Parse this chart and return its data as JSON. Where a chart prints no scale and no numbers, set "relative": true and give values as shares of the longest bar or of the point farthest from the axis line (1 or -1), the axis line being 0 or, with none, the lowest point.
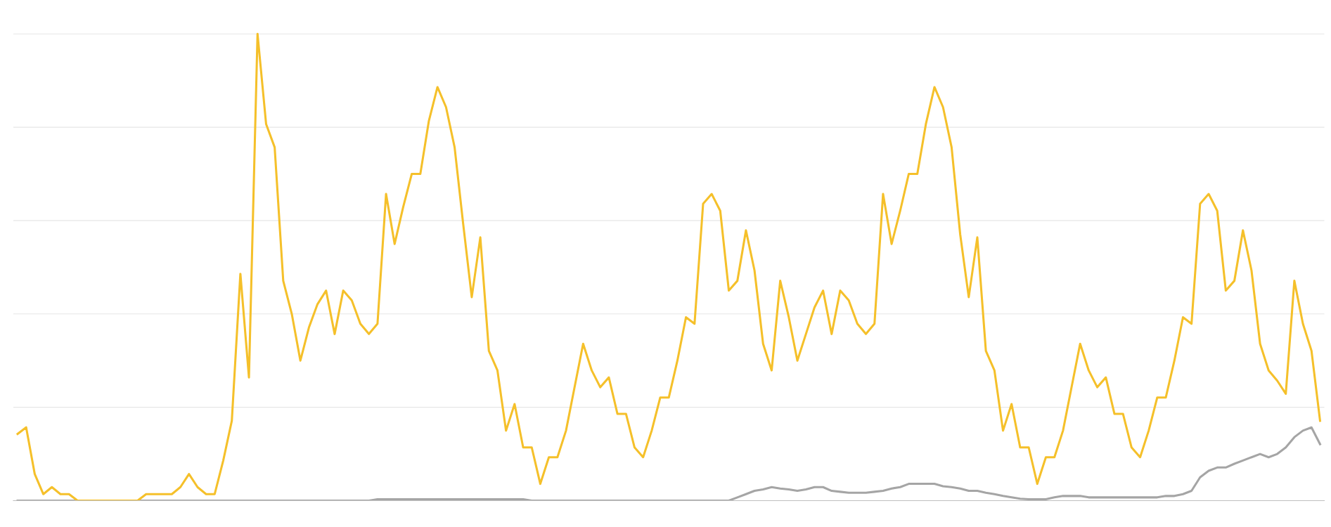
{
  "chart_data": {
    "type": "line",
    "relative": true,
    "grid": "y",
    "categories": [
      null,
      null,
      null,
      null,
      null,
      null,
      null,
      null,
      null,
      null,
      null,
      null,
      null,
      null,
      null,
      null,
      null,
      null,
      null,
      null,
      null,
      null,
      null,
      null,
      null,
      null,
      null,
      null,
      null,
      null,
      null,
      null,
      null,
      null,
      null,
      null,
      null,
      null,
      null,
      null,
      null,
      null,
      null,
      null,
      null,
      null,
      null,
      null,
      null,
      null,
      null,
      null,
      null,
      null,
      null,
      null,
      null,
      null,
      null,
      null,
      null,
      null,
      null,
      null,
      null,
      null,
      null,
      null,
      null,
      null,
      null,
      null,
      null,
      null,
      null,
      null,
      null,
      null,
      null,
      null,
      null,
      null,
      null,
      null,
      null,
      null,
      null,
      null,
      null,
      null,
      null,
      null,
      null,
      null,
      null,
      null,
      null,
      null,
      null,
      null,
      null,
      null,
      null,
      null,
      null,
      null,
      null,
      null,
      null,
      null,
      null,
      null,
      null,
      null,
      null,
      null,
      null,
      null,
      null,
      null,
      null,
      null,
      null,
      null,
      null,
      null,
      null,
      null,
      null,
      null,
      null,
      null,
      null,
      null,
      null,
      null,
      null,
      null,
      null,
      null,
      null,
      null,
      null,
      null,
      null,
      null,
      null,
      null,
      null,
      null,
      null,
      null,
      null
    ],
    "series": [
      {
        "color": "#a5a5a5",
        "values": [
          0,
          0,
          0,
          0,
          0,
          0,
          0,
          0,
          0,
          0,
          0,
          0,
          0,
          0,
          0,
          0,
          0,
          0,
          0,
          0,
          0,
          0,
          0,
          0,
          0,
          0,
          0,
          0,
          0,
          0,
          0,
          0,
          0,
          0,
          0,
          0,
          0,
          0,
          0,
          0,
          0,
          0,
          0.003,
          0.003,
          0.003,
          0.003,
          0.003,
          0.003,
          0.003,
          0.003,
          0.003,
          0.003,
          0.003,
          0.003,
          0.003,
          0.003,
          0.003,
          0.003,
          0.003,
          0.003,
          0,
          0,
          0,
          0,
          0,
          0,
          0,
          0,
          0,
          0,
          0,
          0,
          0,
          0,
          0,
          0,
          0,
          0,
          0,
          0,
          0,
          0,
          0,
          0,
          0.007,
          0.014,
          0.021,
          0.024,
          0.029,
          0.026,
          0.024,
          0.021,
          0.024,
          0.029,
          0.029,
          0.021,
          0.019,
          0.017,
          0.017,
          0.017,
          0.019,
          0.021,
          0.026,
          0.029,
          0.036,
          0.036,
          0.036,
          0.036,
          0.031,
          0.029,
          0.026,
          0.021,
          0.021,
          0.017,
          0.014,
          0.01,
          0.007,
          0.004,
          0.003,
          0.003,
          0.003,
          0.007,
          0.01,
          0.01,
          0.01,
          0.007,
          0.007,
          0.007,
          0.007,
          0.007,
          0.007,
          0.007,
          0.007,
          0.007,
          0.01,
          0.01,
          0.014,
          0.021,
          0.05,
          0.064,
          0.071,
          0.071,
          0.079,
          0.086,
          0.093,
          0.1,
          0.093,
          0.1,
          0.114,
          0.136,
          0.15,
          0.157,
          0.121
        ]
      },
      {
        "color": "#f5c02a",
        "values": [
          0.143,
          0.157,
          0.057,
          0.014,
          0.029,
          0.014,
          0.014,
          0,
          0,
          0,
          0,
          0,
          0,
          0,
          0,
          0.014,
          0.014,
          0.014,
          0.014,
          0.029,
          0.057,
          0.029,
          0.014,
          0.014,
          0.086,
          0.171,
          0.486,
          0.264,
          1,
          0.807,
          0.757,
          0.471,
          0.4,
          0.3,
          0.371,
          0.421,
          0.45,
          0.357,
          0.45,
          0.429,
          0.379,
          0.357,
          0.379,
          0.657,
          0.55,
          0.629,
          0.7,
          0.7,
          0.814,
          0.886,
          0.843,
          0.757,
          0.593,
          0.436,
          0.564,
          0.321,
          0.279,
          0.15,
          0.207,
          0.114,
          0.114,
          0.036,
          0.093,
          0.093,
          0.15,
          0.243,
          0.336,
          0.279,
          0.243,
          0.264,
          0.186,
          0.186,
          0.114,
          0.093,
          0.15,
          0.221,
          0.221,
          0.3,
          0.393,
          0.379,
          0.636,
          0.657,
          0.621,
          0.45,
          0.471,
          0.579,
          0.493,
          0.336,
          0.279,
          0.471,
          0.393,
          0.3,
          0.357,
          0.414,
          0.45,
          0.357,
          0.45,
          0.429,
          0.379,
          0.357,
          0.379,
          0.657,
          0.55,
          0.621,
          0.7,
          0.7,
          0.807,
          0.886,
          0.843,
          0.757,
          0.571,
          0.436,
          0.564,
          0.321,
          0.279,
          0.15,
          0.207,
          0.114,
          0.114,
          0.036,
          0.093,
          0.093,
          0.15,
          0.243,
          0.336,
          0.279,
          0.243,
          0.264,
          0.186,
          0.186,
          0.114,
          0.093,
          0.15,
          0.221,
          0.221,
          0.3,
          0.393,
          0.379,
          0.636,
          0.657,
          0.621,
          0.45,
          0.471,
          0.579,
          0.493,
          0.336,
          0.279,
          0.257,
          0.229,
          0.471,
          0.379,
          0.321,
          0.171
        ]
      }
    ]
  }
}
